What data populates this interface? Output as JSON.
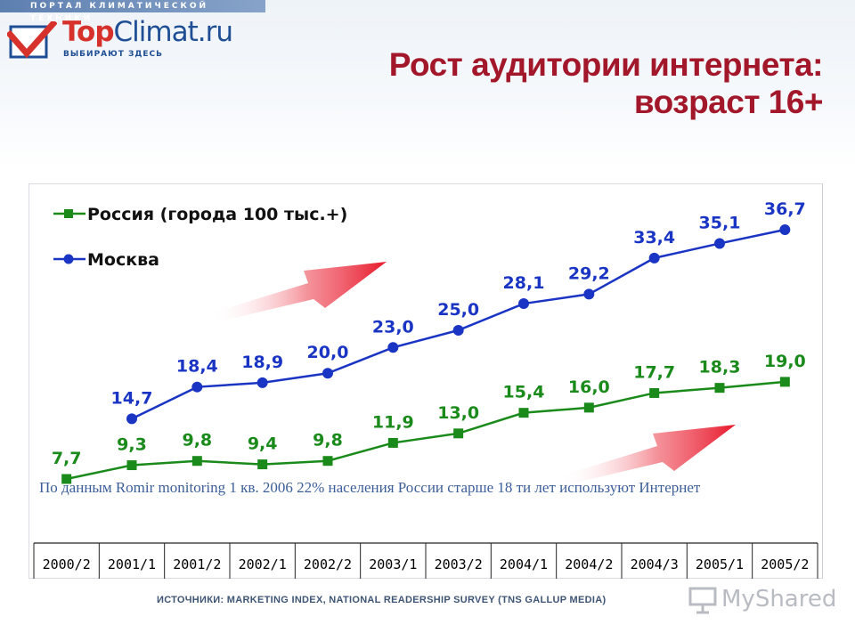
{
  "header": {
    "portal_bar": "ПОРТАЛ КЛИМАТИЧЕСКОЙ ТЕХНИКИ",
    "logo_top": "Top",
    "logo_climat": "Climat.ru",
    "logo_tagline": "ВЫБИРАЮТ ЗДЕСЬ",
    "title_line1": "Рост аудитории интернета:",
    "title_line2": "возраст 16+"
  },
  "note_text": "По данным Romir monitoring 1 кв. 2006 22% населения России старше 18 ти лет используют Интернет",
  "source_text": "ИСТОЧНИКИ: MARKETING INDEX, NATIONAL READERSHIP SURVEY (TNS GALLUP MEDIA)",
  "watermark_text": "MyShared",
  "colors": {
    "russia": "#1a8a1a",
    "moscow": "#1a35c4",
    "title": "#a3172a",
    "arrow": "#e8192c"
  },
  "chart_data": {
    "type": "line",
    "categories": [
      "2000/2",
      "2001/1",
      "2001/2",
      "2002/1",
      "2002/2",
      "2003/1",
      "2003/2",
      "2004/1",
      "2004/2",
      "2004/3",
      "2005/1",
      "2005/2"
    ],
    "series": [
      {
        "name": "Россия (города 100 тыс.+)",
        "values": [
          7.7,
          9.3,
          9.8,
          9.4,
          9.8,
          11.9,
          13.0,
          15.4,
          16.0,
          17.7,
          18.3,
          19.0
        ],
        "labels": [
          "7,7",
          "9,3",
          "9,8",
          "9,4",
          "9,8",
          "11,9",
          "13,0",
          "15,4",
          "16,0",
          "17,7",
          "18,3",
          "19,0"
        ],
        "marker": "square",
        "color": "#1a8a1a"
      },
      {
        "name": "Москва",
        "values": [
          null,
          14.7,
          18.4,
          18.9,
          20.0,
          23.0,
          25.0,
          28.1,
          29.2,
          33.4,
          35.1,
          36.7
        ],
        "labels": [
          null,
          "14,7",
          "18,4",
          "18,9",
          "20,0",
          "23,0",
          "25,0",
          "28,1",
          "29,2",
          "33,4",
          "35,1",
          "36,7"
        ],
        "marker": "circle",
        "color": "#1a35c4"
      }
    ],
    "title": "Рост аудитории интернета: возраст 16+",
    "ylim": [
      7.7,
      36.7
    ],
    "grid": false,
    "legend": "top-left"
  }
}
